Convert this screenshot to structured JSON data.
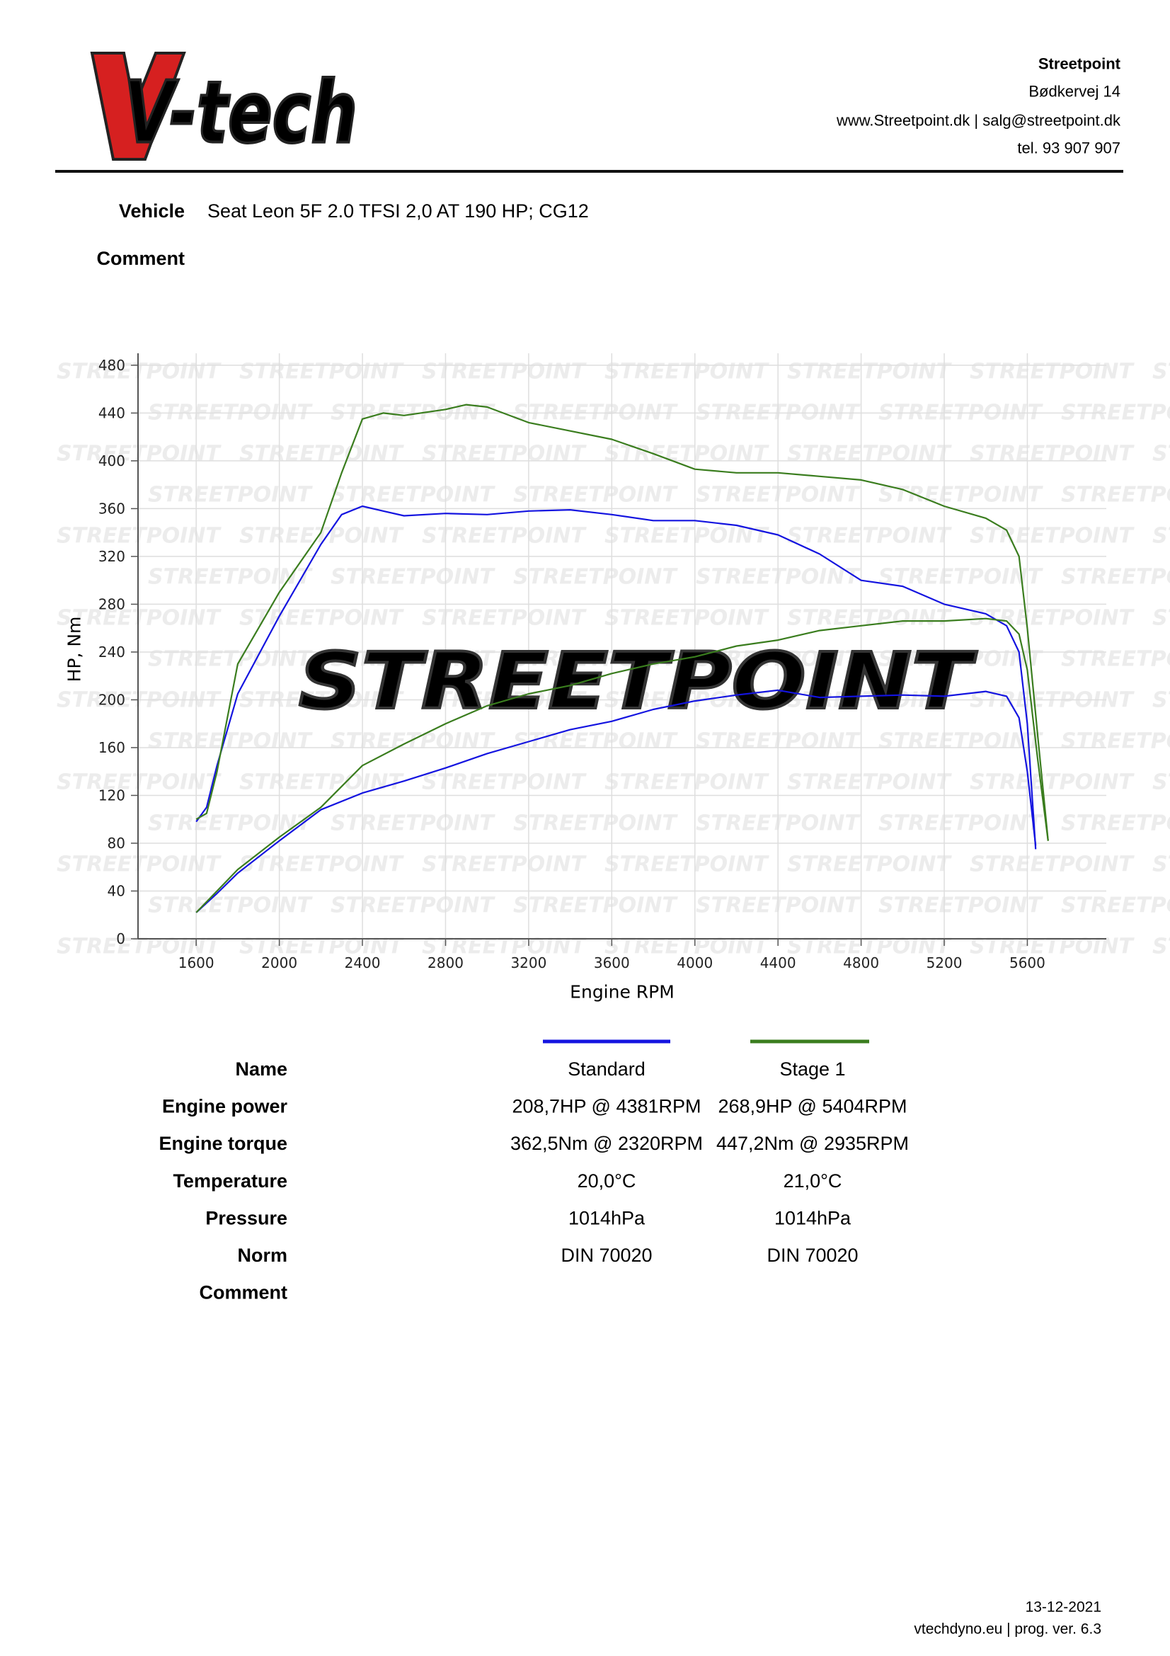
{
  "logo": "V-tech",
  "header": {
    "company": "Streetpoint",
    "address": "Bødkervej 14",
    "web": "www.Streetpoint.dk | salg@streetpoint.dk",
    "phone": "tel. 93 907 907"
  },
  "vehicle": {
    "label": "Vehicle",
    "value": "Seat Leon 5F 2.0 TFSI 2,0 AT 190 HP; CG12"
  },
  "comment": {
    "label": "Comment"
  },
  "watermark": "STREETPOINT",
  "chart_data": {
    "type": "line",
    "xlabel": "Engine RPM",
    "ylabel": "HP, Nm",
    "xlim": [
      1320,
      5980
    ],
    "ylim": [
      0,
      490
    ],
    "xticks": [
      1600,
      2000,
      2400,
      2800,
      3200,
      3600,
      4000,
      4400,
      4800,
      5200,
      5600
    ],
    "yticks": [
      0,
      40,
      80,
      120,
      160,
      200,
      240,
      280,
      320,
      360,
      400,
      440,
      480
    ],
    "grid": true,
    "series": [
      {
        "color": "#1414e0",
        "x": [
          1600,
          1650,
          1700,
          1800,
          2000,
          2200,
          2300,
          2400,
          2500,
          2600,
          2800,
          3000,
          3200,
          3400,
          3600,
          3800,
          4000,
          4200,
          4400,
          4600,
          4800,
          5000,
          5200,
          5400,
          5500,
          5560,
          5600,
          5640
        ],
        "values": [
          98,
          110,
          145,
          205,
          270,
          330,
          355,
          362,
          358,
          354,
          356,
          355,
          358,
          359,
          355,
          350,
          350,
          346,
          338,
          322,
          300,
          295,
          280,
          272,
          262,
          240,
          180,
          75
        ]
      },
      {
        "color": "#1414e0",
        "x": [
          1600,
          1700,
          1800,
          2000,
          2200,
          2400,
          2600,
          2800,
          3000,
          3200,
          3400,
          3600,
          3800,
          4000,
          4200,
          4400,
          4600,
          4800,
          5000,
          5200,
          5400,
          5500,
          5560,
          5600,
          5640
        ],
        "values": [
          22,
          38,
          55,
          82,
          108,
          122,
          132,
          143,
          155,
          165,
          175,
          182,
          192,
          199,
          204,
          208,
          202,
          203,
          204,
          203,
          207,
          203,
          185,
          140,
          78
        ]
      },
      {
        "color": "#3a7d1e",
        "x": [
          1600,
          1650,
          1700,
          1800,
          2000,
          2200,
          2300,
          2400,
          2500,
          2600,
          2800,
          2900,
          3000,
          3200,
          3400,
          3600,
          3800,
          4000,
          4200,
          4400,
          4600,
          4800,
          5000,
          5200,
          5400,
          5500,
          5560,
          5600,
          5650,
          5700
        ],
        "values": [
          100,
          105,
          140,
          230,
          290,
          340,
          390,
          435,
          440,
          438,
          443,
          447,
          445,
          432,
          425,
          418,
          406,
          393,
          390,
          390,
          387,
          384,
          376,
          362,
          352,
          342,
          320,
          260,
          170,
          82
        ]
      },
      {
        "color": "#3a7d1e",
        "x": [
          1600,
          1700,
          1800,
          2000,
          2200,
          2400,
          2600,
          2800,
          3000,
          3200,
          3400,
          3600,
          3800,
          4000,
          4200,
          4400,
          4600,
          4800,
          5000,
          5200,
          5400,
          5500,
          5560,
          5600,
          5650,
          5700
        ],
        "values": [
          22,
          40,
          58,
          85,
          110,
          145,
          163,
          180,
          195,
          205,
          212,
          222,
          230,
          236,
          245,
          250,
          258,
          262,
          266,
          266,
          268,
          266,
          255,
          225,
          150,
          82
        ]
      }
    ]
  },
  "table": {
    "rows": [
      [
        "Name",
        "Standard",
        "Stage 1"
      ],
      [
        "Engine power",
        "208,7HP @ 4381RPM",
        "268,9HP @ 5404RPM"
      ],
      [
        "Engine torque",
        "362,5Nm @ 2320RPM",
        "447,2Nm @ 2935RPM"
      ],
      [
        "Temperature",
        "20,0°C",
        "21,0°C"
      ],
      [
        "Pressure",
        "1014hPa",
        "1014hPa"
      ],
      [
        "Norm",
        "DIN 70020",
        "DIN 70020"
      ],
      [
        "Comment"
      ]
    ]
  },
  "footer": {
    "date": "13-12-2021",
    "program": "vtechdyno.eu | prog. ver. 6.3"
  }
}
